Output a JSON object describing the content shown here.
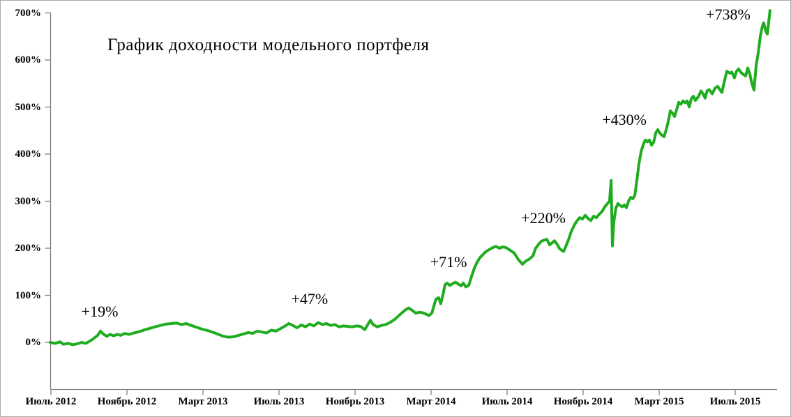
{
  "frame": {
    "background": "#ffffff",
    "border_color": "#a9a9a9"
  },
  "chart_data": {
    "type": "line",
    "title": "График доходности модельного портфеля",
    "axis_color": "#808080",
    "text_color": "#000000",
    "grid": false,
    "legend": "none",
    "x_axis": {
      "unit": "months (0 = July 2012)",
      "ticks": [
        {
          "label": "Июль 2012",
          "m": 0
        },
        {
          "label": "Ноябрь 2012",
          "m": 4
        },
        {
          "label": "Март 2013",
          "m": 8
        },
        {
          "label": "Июль 2013",
          "m": 12
        },
        {
          "label": "Ноябрь 2013",
          "m": 16
        },
        {
          "label": "Март 2014",
          "m": 20
        },
        {
          "label": "Июль 2014",
          "m": 24
        },
        {
          "label": "Ноябрь 2014",
          "m": 28
        },
        {
          "label": "Март 2015",
          "m": 32
        },
        {
          "label": "Июль 2015",
          "m": 36
        }
      ]
    },
    "y_axis": {
      "range": [
        -100,
        700
      ],
      "ticks": [
        {
          "label": "0%",
          "value": 0
        },
        {
          "label": "100%",
          "value": 100
        },
        {
          "label": "200%",
          "value": 200
        },
        {
          "label": "300%",
          "value": 300
        },
        {
          "label": "400%",
          "value": 400
        },
        {
          "label": "500%",
          "value": 500
        },
        {
          "label": "600%",
          "value": 600
        },
        {
          "label": "700%",
          "value": 700
        }
      ]
    },
    "annotations": [
      {
        "label": "+19%",
        "m": 2.57,
        "v": 64
      },
      {
        "label": "+47%",
        "m": 13.61,
        "v": 90
      },
      {
        "label": "+71%",
        "m": 20.92,
        "v": 169
      },
      {
        "label": "+220%",
        "m": 25.91,
        "v": 262
      },
      {
        "label": "+430%",
        "m": 30.17,
        "v": 471
      },
      {
        "label": "+738%",
        "m": 35.63,
        "v": 695
      }
    ],
    "series": [
      {
        "id": "model-portfolio-return",
        "color": "#1FAD1F",
        "stroke_width": 4,
        "points": [
          [
            -0.04,
            0
          ],
          [
            0.22,
            -2
          ],
          [
            0.48,
            1
          ],
          [
            0.66,
            -4
          ],
          [
            0.92,
            -2
          ],
          [
            1.14,
            -5
          ],
          [
            1.39,
            -3
          ],
          [
            1.61,
            0
          ],
          [
            1.83,
            -2
          ],
          [
            2.06,
            3
          ],
          [
            2.24,
            8
          ],
          [
            2.46,
            15
          ],
          [
            2.61,
            24
          ],
          [
            2.75,
            18
          ],
          [
            2.94,
            13
          ],
          [
            3.12,
            17
          ],
          [
            3.3,
            14
          ],
          [
            3.49,
            17
          ],
          [
            3.67,
            15
          ],
          [
            3.89,
            19
          ],
          [
            4.11,
            17
          ],
          [
            4.37,
            20
          ],
          [
            4.66,
            23
          ],
          [
            4.95,
            27
          ],
          [
            5.21,
            30
          ],
          [
            5.47,
            33
          ],
          [
            5.76,
            36
          ],
          [
            6.06,
            39
          ],
          [
            6.35,
            40
          ],
          [
            6.61,
            41
          ],
          [
            6.86,
            38
          ],
          [
            7.12,
            40
          ],
          [
            7.38,
            36
          ],
          [
            7.67,
            32
          ],
          [
            7.96,
            28
          ],
          [
            8.26,
            25
          ],
          [
            8.55,
            21
          ],
          [
            8.81,
            17
          ],
          [
            9.06,
            13
          ],
          [
            9.36,
            11
          ],
          [
            9.61,
            12
          ],
          [
            9.87,
            15
          ],
          [
            10.13,
            18
          ],
          [
            10.39,
            21
          ],
          [
            10.61,
            19
          ],
          [
            10.86,
            24
          ],
          [
            11.08,
            22
          ],
          [
            11.34,
            20
          ],
          [
            11.6,
            26
          ],
          [
            11.85,
            24
          ],
          [
            12.07,
            29
          ],
          [
            12.33,
            35
          ],
          [
            12.51,
            40
          ],
          [
            12.73,
            36
          ],
          [
            12.95,
            31
          ],
          [
            13.17,
            37
          ],
          [
            13.39,
            33
          ],
          [
            13.61,
            39
          ],
          [
            13.83,
            35
          ],
          [
            14.06,
            42
          ],
          [
            14.28,
            38
          ],
          [
            14.5,
            40
          ],
          [
            14.72,
            36
          ],
          [
            14.94,
            38
          ],
          [
            15.16,
            33
          ],
          [
            15.38,
            35
          ],
          [
            15.63,
            34
          ],
          [
            15.85,
            33
          ],
          [
            16.07,
            35
          ],
          [
            16.29,
            34
          ],
          [
            16.51,
            27
          ],
          [
            16.7,
            40
          ],
          [
            16.81,
            47
          ],
          [
            16.95,
            38
          ],
          [
            17.17,
            33
          ],
          [
            17.39,
            36
          ],
          [
            17.61,
            38
          ],
          [
            17.83,
            42
          ],
          [
            18.06,
            48
          ],
          [
            18.28,
            56
          ],
          [
            18.5,
            64
          ],
          [
            18.68,
            70
          ],
          [
            18.83,
            73
          ],
          [
            19.01,
            68
          ],
          [
            19.19,
            62
          ],
          [
            19.38,
            64
          ],
          [
            19.56,
            63
          ],
          [
            19.74,
            60
          ],
          [
            19.89,
            57
          ],
          [
            20.04,
            62
          ],
          [
            20.15,
            78
          ],
          [
            20.26,
            92
          ],
          [
            20.4,
            95
          ],
          [
            20.51,
            82
          ],
          [
            20.62,
            100
          ],
          [
            20.73,
            122
          ],
          [
            20.84,
            126
          ],
          [
            20.99,
            121
          ],
          [
            21.14,
            125
          ],
          [
            21.28,
            128
          ],
          [
            21.43,
            124
          ],
          [
            21.58,
            120
          ],
          [
            21.69,
            126
          ],
          [
            21.83,
            118
          ],
          [
            21.98,
            121
          ],
          [
            22.13,
            140
          ],
          [
            22.28,
            158
          ],
          [
            22.42,
            170
          ],
          [
            22.57,
            180
          ],
          [
            22.72,
            186
          ],
          [
            22.86,
            192
          ],
          [
            23.05,
            197
          ],
          [
            23.23,
            201
          ],
          [
            23.41,
            204
          ],
          [
            23.6,
            200
          ],
          [
            23.78,
            203
          ],
          [
            23.96,
            201
          ],
          [
            24.15,
            196
          ],
          [
            24.37,
            190
          ],
          [
            24.59,
            176
          ],
          [
            24.81,
            166
          ],
          [
            24.99,
            173
          ],
          [
            25.17,
            177
          ],
          [
            25.36,
            184
          ],
          [
            25.5,
            200
          ],
          [
            25.65,
            208
          ],
          [
            25.8,
            215
          ],
          [
            25.94,
            217
          ],
          [
            26.09,
            219
          ],
          [
            26.24,
            207
          ],
          [
            26.38,
            212
          ],
          [
            26.49,
            216
          ],
          [
            26.64,
            208
          ],
          [
            26.75,
            200
          ],
          [
            26.86,
            196
          ],
          [
            26.97,
            193
          ],
          [
            27.08,
            203
          ],
          [
            27.23,
            218
          ],
          [
            27.37,
            235
          ],
          [
            27.52,
            248
          ],
          [
            27.67,
            258
          ],
          [
            27.82,
            265
          ],
          [
            27.96,
            262
          ],
          [
            28.11,
            270
          ],
          [
            28.26,
            263
          ],
          [
            28.4,
            259
          ],
          [
            28.55,
            268
          ],
          [
            28.7,
            265
          ],
          [
            28.84,
            272
          ],
          [
            28.99,
            278
          ],
          [
            29.14,
            288
          ],
          [
            29.28,
            295
          ],
          [
            29.39,
            300
          ],
          [
            29.47,
            344
          ],
          [
            29.54,
            205
          ],
          [
            29.61,
            255
          ],
          [
            29.72,
            285
          ],
          [
            29.83,
            295
          ],
          [
            29.94,
            291
          ],
          [
            30.06,
            288
          ],
          [
            30.17,
            292
          ],
          [
            30.28,
            286
          ],
          [
            30.39,
            300
          ],
          [
            30.5,
            308
          ],
          [
            30.61,
            305
          ],
          [
            30.72,
            312
          ],
          [
            30.83,
            345
          ],
          [
            30.94,
            380
          ],
          [
            31.05,
            405
          ],
          [
            31.16,
            420
          ],
          [
            31.27,
            430
          ],
          [
            31.38,
            426
          ],
          [
            31.49,
            430
          ],
          [
            31.6,
            419
          ],
          [
            31.71,
            425
          ],
          [
            31.82,
            445
          ],
          [
            31.93,
            452
          ],
          [
            32.04,
            444
          ],
          [
            32.15,
            440
          ],
          [
            32.26,
            437
          ],
          [
            32.37,
            452
          ],
          [
            32.48,
            470
          ],
          [
            32.59,
            492
          ],
          [
            32.7,
            487
          ],
          [
            32.81,
            480
          ],
          [
            32.92,
            495
          ],
          [
            33.03,
            510
          ],
          [
            33.14,
            506
          ],
          [
            33.25,
            513
          ],
          [
            33.36,
            509
          ],
          [
            33.47,
            513
          ],
          [
            33.58,
            500
          ],
          [
            33.69,
            518
          ],
          [
            33.8,
            523
          ],
          [
            33.91,
            514
          ],
          [
            34.06,
            522
          ],
          [
            34.2,
            534
          ],
          [
            34.31,
            528
          ],
          [
            34.42,
            519
          ],
          [
            34.53,
            535
          ],
          [
            34.64,
            537
          ],
          [
            34.79,
            528
          ],
          [
            34.94,
            540
          ],
          [
            35.08,
            544
          ],
          [
            35.19,
            537
          ],
          [
            35.3,
            531
          ],
          [
            35.45,
            558
          ],
          [
            35.56,
            576
          ],
          [
            35.71,
            572
          ],
          [
            35.82,
            574
          ],
          [
            35.96,
            562
          ],
          [
            36.07,
            576
          ],
          [
            36.18,
            581
          ],
          [
            36.29,
            574
          ],
          [
            36.4,
            570
          ],
          [
            36.55,
            566
          ],
          [
            36.66,
            583
          ],
          [
            36.77,
            570
          ],
          [
            36.88,
            550
          ],
          [
            36.99,
            536
          ],
          [
            37.1,
            588
          ],
          [
            37.21,
            615
          ],
          [
            37.32,
            650
          ],
          [
            37.43,
            672
          ],
          [
            37.5,
            679
          ],
          [
            37.61,
            661
          ],
          [
            37.69,
            655
          ],
          [
            37.76,
            680
          ],
          [
            37.83,
            705
          ]
        ]
      }
    ]
  }
}
